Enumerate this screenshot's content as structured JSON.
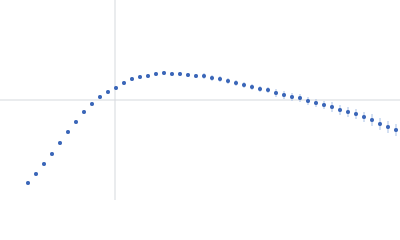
{
  "chart_data": {
    "type": "scatter",
    "x": [
      28,
      36,
      44,
      52,
      60,
      68,
      76,
      84,
      92,
      100,
      108,
      116,
      124,
      132,
      140,
      148,
      156,
      164,
      172,
      180,
      188,
      196,
      204,
      212,
      220,
      228,
      236,
      244,
      252,
      260,
      268,
      276,
      284,
      292,
      300,
      308,
      316,
      324,
      332,
      340,
      348,
      356,
      364,
      372,
      380,
      388,
      396
    ],
    "series": [
      {
        "color": "#3a66b8",
        "error_color": "#a9c0e6",
        "values": [
          17,
          26,
          36,
          46,
          57,
          68,
          78,
          88,
          96,
          103,
          108,
          112,
          117,
          121,
          123,
          124,
          126,
          127,
          126,
          126,
          125,
          124,
          124,
          122,
          121,
          119,
          117,
          115,
          113,
          111,
          110,
          107,
          105,
          103,
          102,
          99,
          97,
          95,
          93,
          90,
          88,
          86,
          83,
          80,
          76,
          73,
          70
        ],
        "errors": [
          1,
          1,
          1,
          1,
          1,
          1,
          1,
          1,
          1,
          1,
          1,
          2,
          2,
          2,
          2,
          2,
          2,
          2,
          2,
          2,
          2,
          2,
          3,
          3,
          3,
          3,
          3,
          3,
          3,
          3,
          3,
          4,
          4,
          4,
          4,
          4,
          4,
          4,
          5,
          5,
          5,
          5,
          5,
          6,
          6,
          6,
          6
        ]
      }
    ],
    "xlim": [
      0,
      400
    ],
    "ylim": [
      0,
      200
    ]
  }
}
